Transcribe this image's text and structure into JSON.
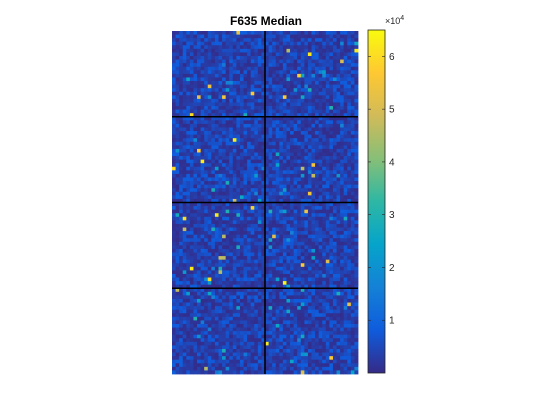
{
  "chart_data": {
    "type": "heatmap",
    "title": "F635 Median",
    "grid": {
      "block_rows": 4,
      "block_cols": 2,
      "cell_rows_per_block": 24,
      "cell_cols_per_block": 26,
      "block_separator_color": "#000000"
    },
    "value_range": [
      0,
      65000
    ],
    "typical_value_range": [
      500,
      9000
    ],
    "colormap": "parula",
    "colormap_stops": [
      "#352a87",
      "#0f5cdd",
      "#1481d6",
      "#06a4ca",
      "#2eb7a4",
      "#87bf77",
      "#d1bb59",
      "#fec832",
      "#f9fb0e"
    ],
    "colorbar": {
      "ticks": [
        1,
        2,
        3,
        4,
        5,
        6
      ],
      "tick_labels": [
        "1",
        "2",
        "3",
        "4",
        "5",
        "6"
      ],
      "scale_base": "×10",
      "scale_exponent": "4",
      "range": [
        0,
        6.5
      ]
    },
    "grid_lines": false
  }
}
